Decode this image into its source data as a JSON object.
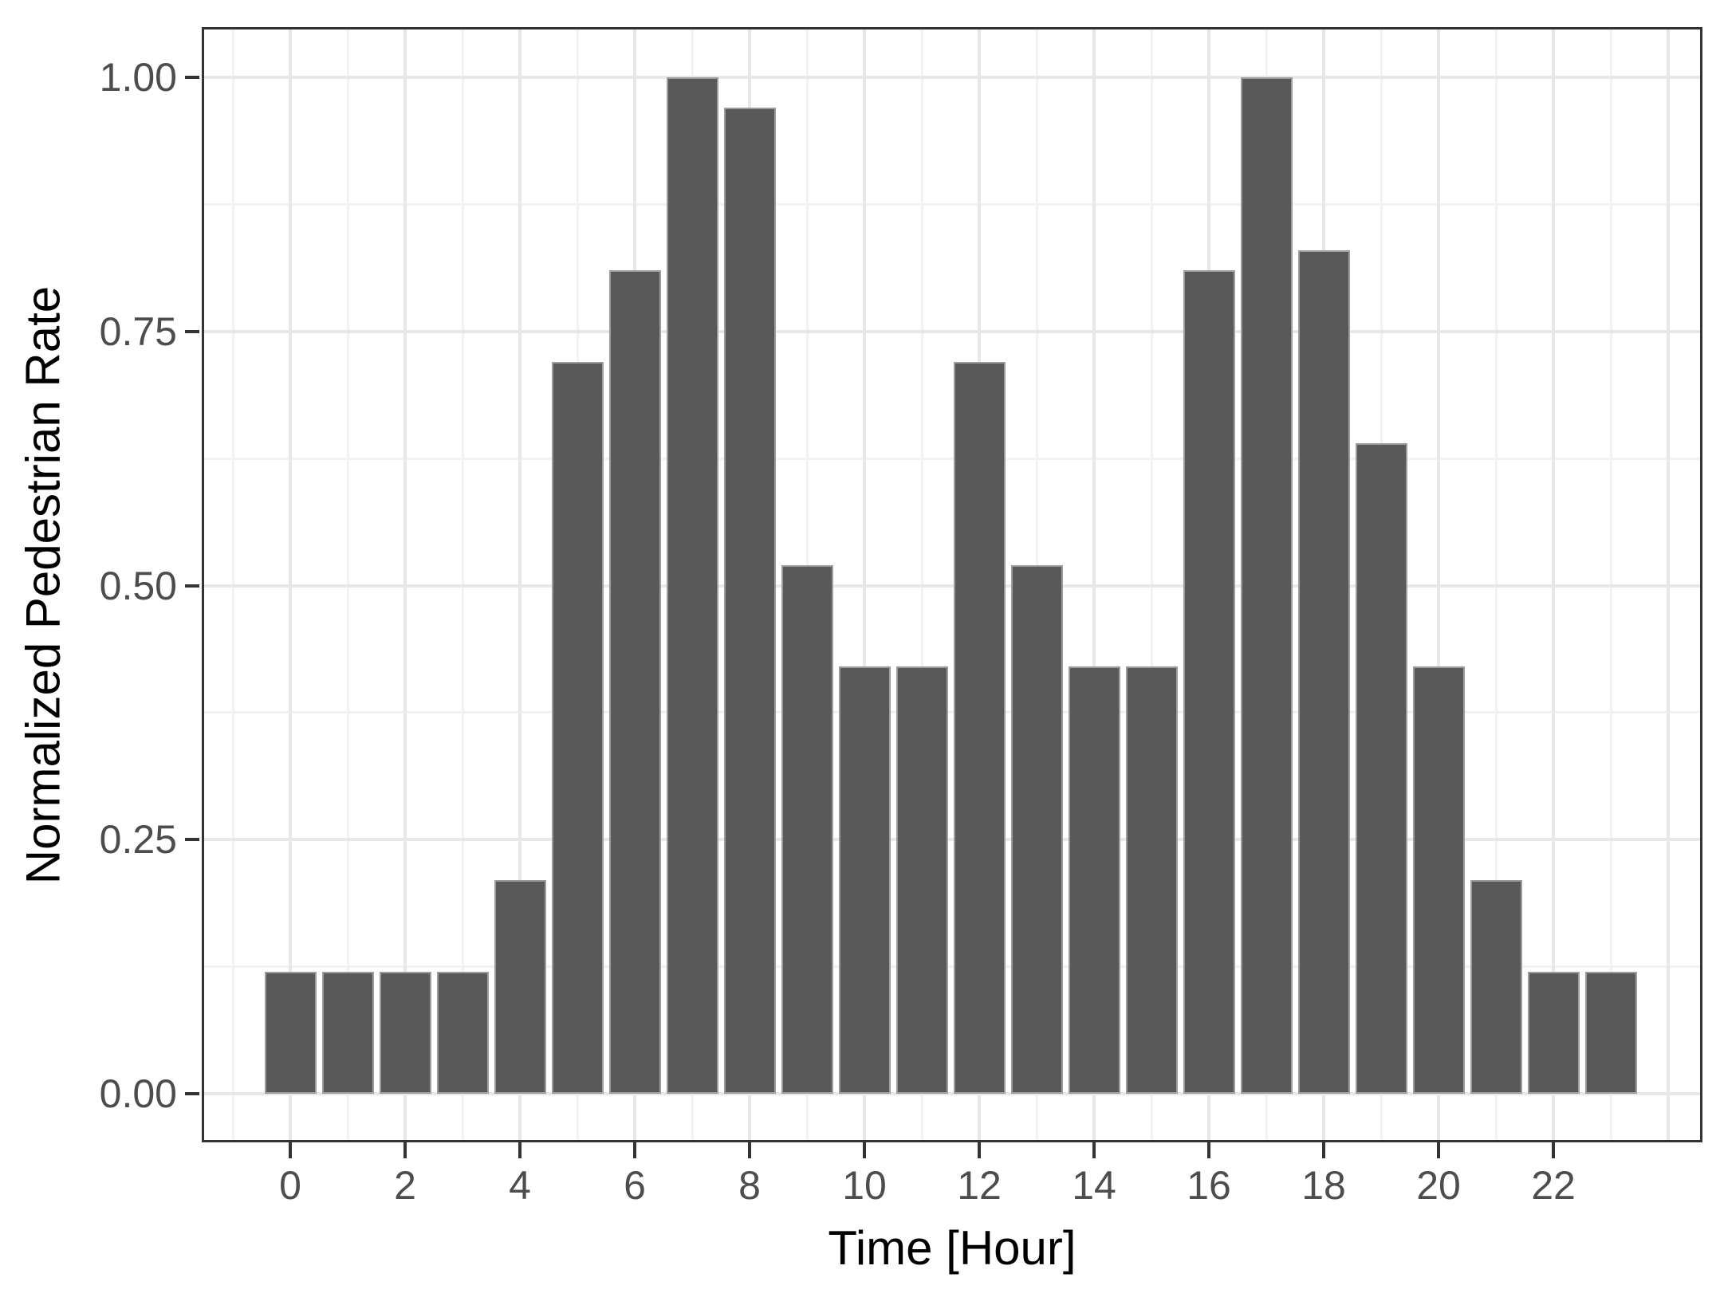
{
  "chart_data": {
    "type": "bar",
    "title": "",
    "xlabel": "Time [Hour]",
    "ylabel": "Normalized Pedestrian Rate",
    "categories": [
      0,
      1,
      2,
      3,
      4,
      5,
      6,
      7,
      8,
      9,
      10,
      11,
      12,
      13,
      14,
      15,
      16,
      17,
      18,
      19,
      20,
      21,
      22,
      23
    ],
    "values": [
      0.12,
      0.12,
      0.12,
      0.12,
      0.21,
      0.72,
      0.81,
      1.0,
      0.97,
      0.52,
      0.42,
      0.42,
      0.72,
      0.52,
      0.42,
      0.42,
      0.81,
      1.0,
      0.83,
      0.64,
      0.42,
      0.21,
      0.12,
      0.12
    ],
    "bar_width_fraction": 0.9,
    "xlim": [
      -1.645,
      24.645
    ],
    "ylim": [
      -0.05,
      1.05
    ],
    "x_ticks": [
      0,
      2,
      4,
      6,
      8,
      10,
      12,
      14,
      16,
      18,
      20,
      22
    ],
    "x_tick_labels": [
      "0",
      "2",
      "4",
      "6",
      "8",
      "10",
      "12",
      "14",
      "16",
      "18",
      "20",
      "22"
    ],
    "y_ticks": [
      0,
      0.25,
      0.5,
      0.75,
      1.0
    ],
    "y_tick_labels": [
      "0.00",
      "0.25",
      "0.50",
      "0.75",
      "1.00"
    ],
    "grid": {
      "major_x_hours": [
        0,
        2,
        4,
        6,
        8,
        10,
        12,
        14,
        16,
        18,
        20,
        22,
        24
      ],
      "minor_x_hours": [
        -1,
        1,
        3,
        5,
        7,
        9,
        11,
        13,
        15,
        17,
        19,
        21,
        23
      ],
      "major_y_values": [
        0,
        0.25,
        0.5,
        0.75,
        1.0
      ],
      "minor_y_values": [
        0.125,
        0.375,
        0.625,
        0.875
      ]
    },
    "legend": "none",
    "colors": {
      "bar_fill": "#595959",
      "bar_outline": "#9c9c9c",
      "grid_major": "#e8e8e8",
      "grid_minor": "#f2f2f2",
      "panel_border": "#333333",
      "tick_mark": "#333333",
      "tick_label": "#4d4d4d",
      "axis_title": "#000000",
      "background": "#ffffff"
    }
  }
}
